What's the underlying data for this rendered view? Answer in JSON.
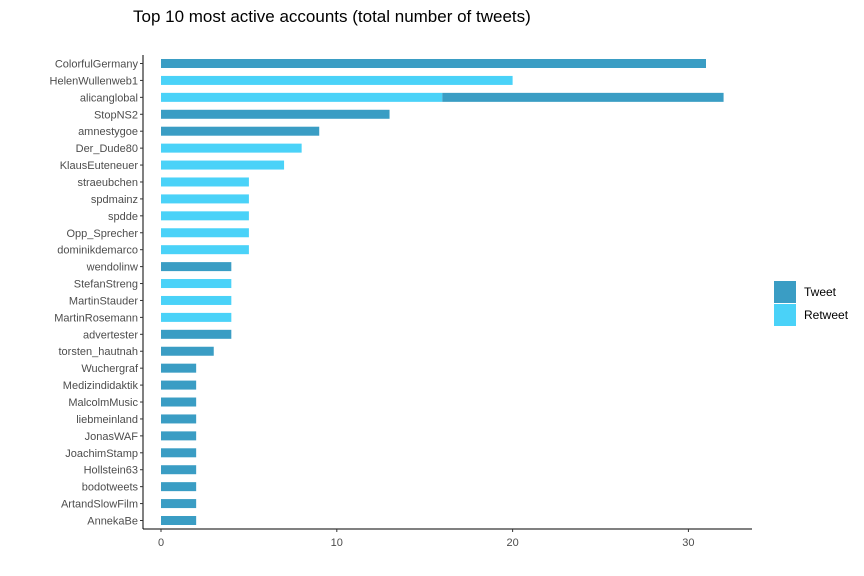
{
  "chart_data": {
    "type": "bar",
    "orientation": "horizontal",
    "stacked": true,
    "title": "Top 10 most active accounts (total number of tweets)",
    "xlabel": "",
    "ylabel": "",
    "xlim": [
      0,
      33.5
    ],
    "x_ticks": [
      0,
      10,
      20,
      30
    ],
    "grid": false,
    "legend_position": "right",
    "legend": [
      {
        "name": "Tweet",
        "color": "#3a9dc4"
      },
      {
        "name": "Retweet",
        "color": "#4ad2f8"
      }
    ],
    "categories": [
      "ColorfulGermany",
      "HelenWullenweb1",
      "alicanglobal",
      "StopNS2",
      "amnestygoe",
      "Der_Dude80",
      "KlausEuteneuer",
      "straeubchen",
      "spdmainz",
      "spdde",
      "Opp_Sprecher",
      "dominikdemarco",
      "wendolinw",
      "StefanStreng",
      "MartinStauder",
      "MartinRosemann",
      "advertester",
      "torsten_hautnah",
      "Wuchergraf",
      "Medizindidaktik",
      "MalcolmMusic",
      "liebmeinland",
      "JonasWAF",
      "JoachimStamp",
      "Hollstein63",
      "bodotweets",
      "ArtandSlowFilm",
      "AnnekaBe"
    ],
    "series": [
      {
        "name": "Retweet",
        "values": [
          0,
          20,
          16,
          0,
          0,
          8,
          7,
          5,
          5,
          5,
          5,
          5,
          0,
          4,
          4,
          4,
          0,
          0,
          0,
          0,
          0,
          0,
          0,
          0,
          0,
          0,
          0,
          0
        ]
      },
      {
        "name": "Tweet",
        "values": [
          31,
          0,
          16,
          13,
          9,
          0,
          0,
          0,
          0,
          0,
          0,
          0,
          4,
          0,
          0,
          0,
          4,
          3,
          2,
          2,
          2,
          2,
          2,
          2,
          2,
          2,
          2,
          2
        ]
      }
    ]
  }
}
